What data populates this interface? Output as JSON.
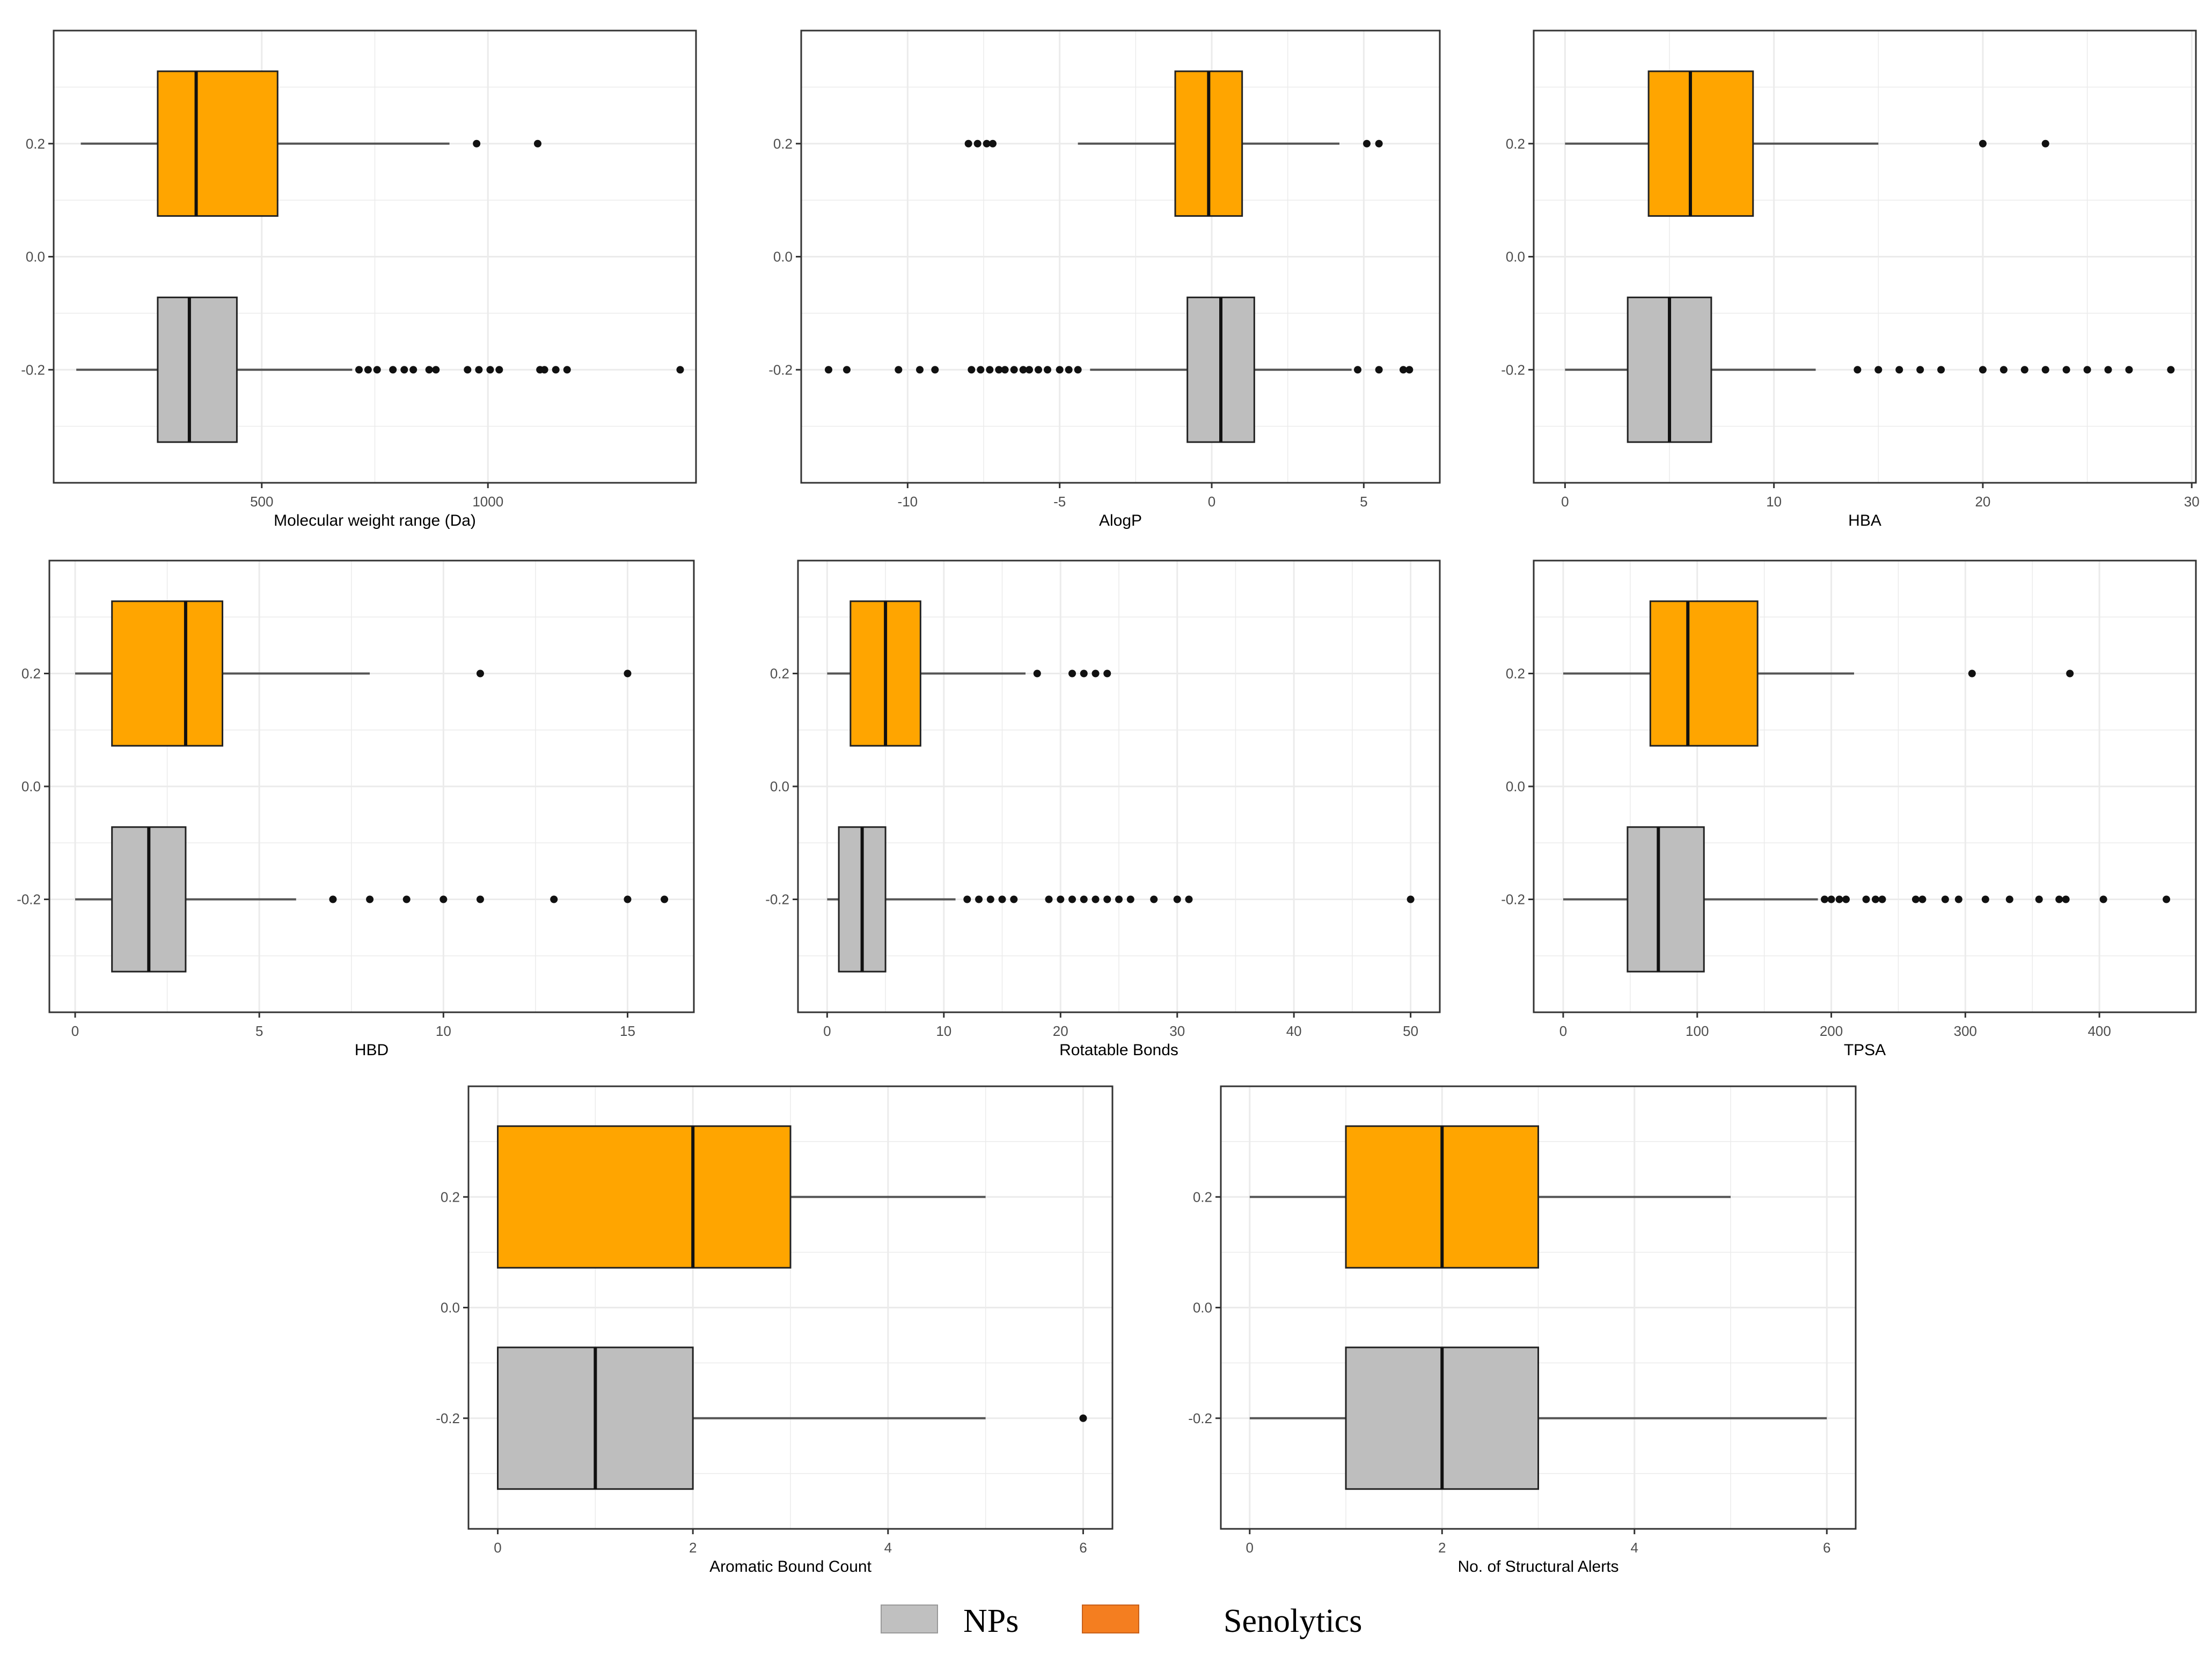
{
  "colors": {
    "senolytics_fill": "#FFA500",
    "np_fill": "#BEBEBE",
    "legend_np": "#C0C0C0",
    "legend_senolytics": "#F47E20",
    "grid": "#EBEBEB",
    "frame": "#333333"
  },
  "legend": {
    "np_label": "NPs",
    "senolytics_label": "Senolytics"
  },
  "y_ticks": [
    "0.2",
    "0.0",
    "-0.2"
  ],
  "chart_data": [
    {
      "type": "boxplot",
      "xlabel": "Molecular weight range (Da)",
      "xlim": [
        40,
        1460
      ],
      "xticks": [
        500,
        1000
      ],
      "x_ticklabels": [
        "500",
        "1000"
      ],
      "ylim": [
        -0.4,
        0.4
      ],
      "series": [
        {
          "name": "Senolytics",
          "y": 0.2,
          "min": 100,
          "q1": 270,
          "median": 355,
          "q3": 535,
          "max": 915,
          "outliers": [
            975,
            1110
          ]
        },
        {
          "name": "NPs",
          "y": -0.2,
          "min": 90,
          "q1": 270,
          "median": 340,
          "q3": 445,
          "max": 700,
          "outliers": [
            715,
            735,
            755,
            790,
            815,
            835,
            870,
            885,
            955,
            980,
            1005,
            1025,
            1115,
            1125,
            1150,
            1175,
            1425
          ]
        }
      ]
    },
    {
      "type": "boxplot",
      "xlabel": "AlogP",
      "xlim": [
        -13.5,
        7.5
      ],
      "xticks": [
        -10,
        -5,
        0,
        5
      ],
      "x_ticklabels": [
        "-10",
        "-5",
        "0",
        "5"
      ],
      "ylim": [
        -0.4,
        0.4
      ],
      "series": [
        {
          "name": "Senolytics",
          "y": 0.2,
          "min": -4.4,
          "q1": -1.2,
          "median": -0.1,
          "q3": 1.0,
          "max": 4.2,
          "outliers": [
            -8.0,
            -7.7,
            -7.4,
            -7.2,
            5.1,
            5.5
          ]
        },
        {
          "name": "NPs",
          "y": -0.2,
          "min": -4.0,
          "q1": -0.8,
          "median": 0.3,
          "q3": 1.4,
          "max": 4.6,
          "outliers": [
            -12.6,
            -12.0,
            -10.3,
            -9.6,
            -9.1,
            -7.9,
            -7.6,
            -7.3,
            -7.0,
            -6.8,
            -6.5,
            -6.2,
            -6.0,
            -5.7,
            -5.4,
            -5.0,
            -4.7,
            -4.4,
            4.8,
            5.5,
            6.3,
            6.5
          ]
        }
      ]
    },
    {
      "type": "boxplot",
      "xlabel": "HBA",
      "xlim": [
        -1.5,
        30.2
      ],
      "xticks": [
        0,
        10,
        20,
        30
      ],
      "x_ticklabels": [
        "0",
        "10",
        "20",
        "30"
      ],
      "ylim": [
        -0.4,
        0.4
      ],
      "series": [
        {
          "name": "Senolytics",
          "y": 0.2,
          "min": 0,
          "q1": 4,
          "median": 6,
          "q3": 9,
          "max": 15,
          "outliers": [
            20,
            23
          ]
        },
        {
          "name": "NPs",
          "y": -0.2,
          "min": 0,
          "q1": 3,
          "median": 5,
          "q3": 7,
          "max": 12,
          "outliers": [
            14,
            15,
            16,
            17,
            18,
            20,
            21,
            22,
            23,
            24,
            25,
            26,
            27,
            29
          ]
        }
      ]
    },
    {
      "type": "boxplot",
      "xlabel": "HBD",
      "xlim": [
        -0.7,
        16.8
      ],
      "xticks": [
        0,
        5,
        10,
        15
      ],
      "x_ticklabels": [
        "0",
        "5",
        "10",
        "15"
      ],
      "ylim": [
        -0.4,
        0.4
      ],
      "series": [
        {
          "name": "Senolytics",
          "y": 0.2,
          "min": 0,
          "q1": 1,
          "median": 3,
          "q3": 4,
          "max": 8,
          "outliers": [
            11,
            15
          ]
        },
        {
          "name": "NPs",
          "y": -0.2,
          "min": 0,
          "q1": 1,
          "median": 2,
          "q3": 3,
          "max": 6,
          "outliers": [
            7,
            8,
            9,
            10,
            11,
            13,
            15,
            16
          ]
        }
      ]
    },
    {
      "type": "boxplot",
      "xlabel": "Rotatable Bonds",
      "xlim": [
        -2.5,
        52.5
      ],
      "xticks": [
        0,
        10,
        20,
        30,
        40,
        50
      ],
      "x_ticklabels": [
        "0",
        "10",
        "20",
        "30",
        "40",
        "50"
      ],
      "ylim": [
        -0.4,
        0.4
      ],
      "series": [
        {
          "name": "Senolytics",
          "y": 0.2,
          "min": 0,
          "q1": 2,
          "median": 5,
          "q3": 8,
          "max": 17,
          "outliers": [
            18,
            21,
            22,
            23,
            24
          ]
        },
        {
          "name": "NPs",
          "y": -0.2,
          "min": 0,
          "q1": 1,
          "median": 3,
          "q3": 5,
          "max": 11,
          "outliers": [
            12,
            13,
            14,
            15,
            16,
            19,
            20,
            21,
            22,
            23,
            24,
            25,
            26,
            28,
            30,
            31,
            50
          ]
        }
      ]
    },
    {
      "type": "boxplot",
      "xlabel": "TPSA",
      "xlim": [
        -22,
        472
      ],
      "xticks": [
        0,
        100,
        200,
        300,
        400
      ],
      "x_ticklabels": [
        "0",
        "100",
        "200",
        "300",
        "400"
      ],
      "ylim": [
        -0.4,
        0.4
      ],
      "series": [
        {
          "name": "Senolytics",
          "y": 0.2,
          "min": 0,
          "q1": 65,
          "median": 93,
          "q3": 145,
          "max": 217,
          "outliers": [
            305,
            378
          ]
        },
        {
          "name": "NPs",
          "y": -0.2,
          "min": 0,
          "q1": 48,
          "median": 71,
          "q3": 105,
          "max": 190,
          "outliers": [
            195,
            200,
            206,
            211,
            226,
            233,
            238,
            263,
            268,
            285,
            295,
            315,
            333,
            355,
            370,
            375,
            403,
            450
          ]
        }
      ]
    },
    {
      "type": "boxplot",
      "xlabel": "Aromatic Bound Count",
      "xlim": [
        -0.3,
        6.3
      ],
      "xticks": [
        0,
        2,
        4,
        6
      ],
      "x_ticklabels": [
        "0",
        "2",
        "4",
        "6"
      ],
      "ylim": [
        -0.4,
        0.4
      ],
      "series": [
        {
          "name": "Senolytics",
          "y": 0.2,
          "min": 0,
          "q1": 0,
          "median": 2,
          "q3": 3,
          "max": 5,
          "outliers": []
        },
        {
          "name": "NPs",
          "y": -0.2,
          "min": 0,
          "q1": 0,
          "median": 1,
          "q3": 2,
          "max": 5,
          "outliers": [
            6
          ]
        }
      ]
    },
    {
      "type": "boxplot",
      "xlabel": "No. of Structural Alerts",
      "xlim": [
        -0.3,
        6.3
      ],
      "xticks": [
        0,
        2,
        4,
        6
      ],
      "x_ticklabels": [
        "0",
        "2",
        "4",
        "6"
      ],
      "ylim": [
        -0.4,
        0.4
      ],
      "series": [
        {
          "name": "Senolytics",
          "y": 0.2,
          "min": 0,
          "q1": 1,
          "median": 2,
          "q3": 3,
          "max": 5,
          "outliers": []
        },
        {
          "name": "NPs",
          "y": -0.2,
          "min": 0,
          "q1": 1,
          "median": 2,
          "q3": 3,
          "max": 6,
          "outliers": []
        }
      ]
    }
  ]
}
